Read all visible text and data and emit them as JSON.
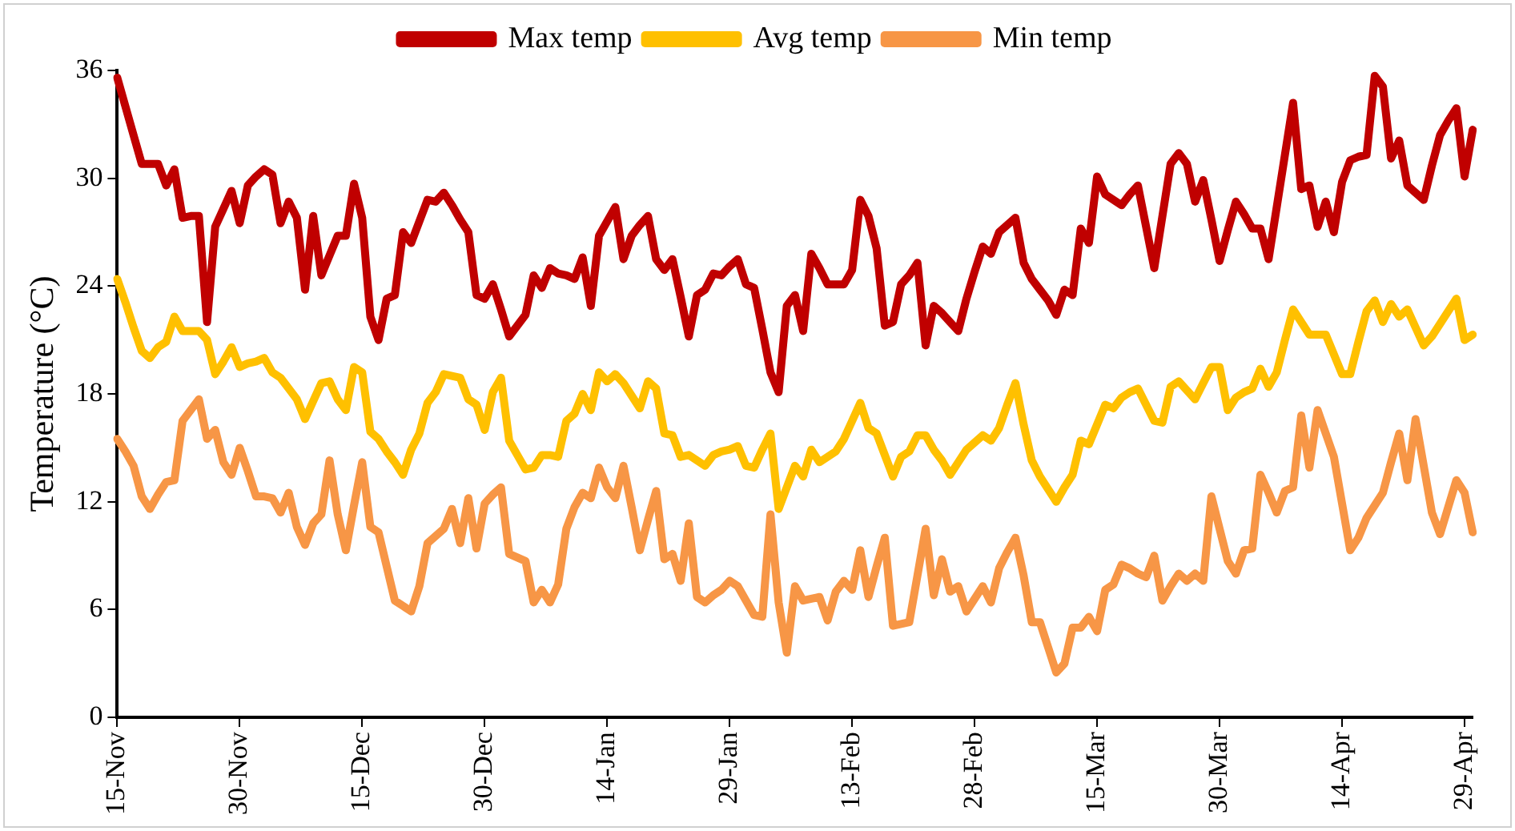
{
  "chart_data": {
    "type": "line",
    "ylabel": "Temperature (°C)",
    "ylim": [
      0,
      36
    ],
    "yticks": [
      0,
      6,
      12,
      18,
      24,
      30,
      36
    ],
    "categories": [
      "15-Nov",
      null,
      null,
      null,
      null,
      null,
      null,
      null,
      null,
      null,
      null,
      null,
      null,
      null,
      null,
      "30-Nov",
      null,
      null,
      null,
      null,
      null,
      null,
      null,
      null,
      null,
      null,
      null,
      null,
      null,
      null,
      "15-Dec",
      null,
      null,
      null,
      null,
      null,
      null,
      null,
      null,
      null,
      null,
      null,
      null,
      null,
      null,
      "30-Dec",
      null,
      null,
      null,
      null,
      null,
      null,
      null,
      null,
      null,
      null,
      null,
      null,
      null,
      null,
      "14-Jan",
      null,
      null,
      null,
      null,
      null,
      null,
      null,
      null,
      null,
      null,
      null,
      null,
      null,
      null,
      "29-Jan",
      null,
      null,
      null,
      null,
      null,
      null,
      null,
      null,
      null,
      null,
      null,
      null,
      null,
      null,
      "13-Feb",
      null,
      null,
      null,
      null,
      null,
      null,
      null,
      null,
      null,
      null,
      null,
      null,
      null,
      null,
      "28-Feb",
      null,
      null,
      null,
      null,
      null,
      null,
      null,
      null,
      null,
      null,
      null,
      null,
      null,
      null,
      "15-Mar",
      null,
      null,
      null,
      null,
      null,
      null,
      null,
      null,
      null,
      null,
      null,
      null,
      null,
      null,
      "30-Mar",
      null,
      null,
      null,
      null,
      null,
      null,
      null,
      null,
      null,
      null,
      null,
      null,
      null,
      null,
      "14-Apr",
      null,
      null,
      null,
      null,
      null,
      null,
      null,
      null,
      null,
      null,
      null,
      null,
      null,
      null,
      "29-Apr",
      null
    ],
    "grid": false,
    "legend": "top",
    "marker": "none",
    "line_style": "solid",
    "series": [
      {
        "name": "Max temp",
        "color": "#c00000",
        "values": [
          35.6,
          34.0,
          32.4,
          30.8,
          30.8,
          30.8,
          29.6,
          30.5,
          27.8,
          27.9,
          27.9,
          22.0,
          27.3,
          28.3,
          29.3,
          27.5,
          29.6,
          30.1,
          30.5,
          30.2,
          27.5,
          28.7,
          27.8,
          23.8,
          27.9,
          24.6,
          25.7,
          26.8,
          26.8,
          29.7,
          27.8,
          22.3,
          21.0,
          23.3,
          23.5,
          27.0,
          26.4,
          27.6,
          28.8,
          28.7,
          29.2,
          28.5,
          27.7,
          27.0,
          23.5,
          23.3,
          24.1,
          22.7,
          21.2,
          21.8,
          22.4,
          24.6,
          23.9,
          25.0,
          24.7,
          24.6,
          24.4,
          25.6,
          22.9,
          26.8,
          27.6,
          28.4,
          25.5,
          26.8,
          27.4,
          27.9,
          25.5,
          24.9,
          25.5,
          23.4,
          21.2,
          23.5,
          23.8,
          24.7,
          24.6,
          25.1,
          25.5,
          24.1,
          23.9,
          21.6,
          19.2,
          18.1,
          22.9,
          23.5,
          21.5,
          25.8,
          25.0,
          24.1,
          24.1,
          24.1,
          24.9,
          28.8,
          27.9,
          26.1,
          21.8,
          22.0,
          24.1,
          24.6,
          25.3,
          20.7,
          22.9,
          22.5,
          22.0,
          21.5,
          23.3,
          24.8,
          26.2,
          25.8,
          27.0,
          27.4,
          27.8,
          25.3,
          24.4,
          23.8,
          23.2,
          22.4,
          23.8,
          23.5,
          27.2,
          26.4,
          30.1,
          29.1,
          28.8,
          28.5,
          29.1,
          29.6,
          27.3,
          25.0,
          27.9,
          30.8,
          31.4,
          30.8,
          28.7,
          29.9,
          27.7,
          25.4,
          27.1,
          28.7,
          28.0,
          27.2,
          27.2,
          25.5,
          28.4,
          31.3,
          34.2,
          29.4,
          29.6,
          27.3,
          28.7,
          27.0,
          29.8,
          31.0,
          31.2,
          31.3,
          35.7,
          35.1,
          31.1,
          32.1,
          29.6,
          29.2,
          28.8,
          30.7,
          32.4,
          33.2,
          33.9,
          30.1,
          32.7
        ]
      },
      {
        "name": "Avg temp",
        "color": "#ffc000",
        "values": [
          24.4,
          23.1,
          21.7,
          20.4,
          20.0,
          20.6,
          20.9,
          22.3,
          21.5,
          21.5,
          21.5,
          21.0,
          19.1,
          19.8,
          20.6,
          19.5,
          19.7,
          19.8,
          20.0,
          19.2,
          18.9,
          18.3,
          17.7,
          16.6,
          17.6,
          18.6,
          18.7,
          17.7,
          17.1,
          19.5,
          19.2,
          15.9,
          15.5,
          14.8,
          14.2,
          13.5,
          14.9,
          15.8,
          17.5,
          18.1,
          19.1,
          19.0,
          18.9,
          17.7,
          17.4,
          16.0,
          18.1,
          18.9,
          15.4,
          14.6,
          13.8,
          13.9,
          14.6,
          14.6,
          14.5,
          16.5,
          16.9,
          18.0,
          17.1,
          19.2,
          18.7,
          19.1,
          18.6,
          17.9,
          17.2,
          18.7,
          18.3,
          15.8,
          15.7,
          14.5,
          14.6,
          14.3,
          14.0,
          14.6,
          14.8,
          14.9,
          15.1,
          14.0,
          13.9,
          14.9,
          15.8,
          11.6,
          12.8,
          14.0,
          13.4,
          14.9,
          14.2,
          14.5,
          14.8,
          15.5,
          16.5,
          17.5,
          16.1,
          15.8,
          14.6,
          13.4,
          14.5,
          14.8,
          15.7,
          15.7,
          14.9,
          14.3,
          13.5,
          14.2,
          14.9,
          15.3,
          15.7,
          15.4,
          16.1,
          17.4,
          18.6,
          16.3,
          14.3,
          13.4,
          12.7,
          12.0,
          12.8,
          13.5,
          15.4,
          15.2,
          16.3,
          17.4,
          17.2,
          17.8,
          18.1,
          18.3,
          17.4,
          16.5,
          16.4,
          18.4,
          18.7,
          18.2,
          17.7,
          18.6,
          19.5,
          19.5,
          17.1,
          17.8,
          18.1,
          18.3,
          19.4,
          18.4,
          19.2,
          21.0,
          22.7,
          22.0,
          21.3,
          21.3,
          21.3,
          20.2,
          19.1,
          19.1,
          20.9,
          22.6,
          23.2,
          22.0,
          23.0,
          22.3,
          22.7,
          21.7,
          20.7,
          21.2,
          21.9,
          22.6,
          23.3,
          21.0,
          21.3
        ]
      },
      {
        "name": "Min temp",
        "color": "#f79646",
        "values": [
          15.5,
          14.8,
          14.0,
          12.3,
          11.6,
          12.4,
          13.1,
          13.2,
          16.5,
          17.1,
          17.7,
          15.5,
          16.0,
          14.2,
          13.5,
          15.0,
          13.7,
          12.3,
          12.3,
          12.2,
          11.4,
          12.5,
          10.6,
          9.6,
          10.8,
          11.3,
          14.3,
          11.3,
          9.3,
          11.8,
          14.2,
          10.6,
          10.3,
          8.4,
          6.5,
          6.2,
          5.9,
          7.3,
          9.7,
          10.1,
          10.5,
          11.6,
          9.7,
          12.2,
          9.4,
          11.9,
          12.4,
          12.8,
          9.1,
          8.9,
          8.7,
          6.4,
          7.1,
          6.4,
          7.4,
          10.5,
          11.7,
          12.5,
          12.2,
          13.9,
          12.8,
          12.2,
          14.0,
          11.7,
          9.3,
          11.0,
          12.6,
          8.8,
          9.1,
          7.6,
          10.8,
          6.7,
          6.4,
          6.8,
          7.1,
          7.6,
          7.3,
          6.5,
          5.7,
          5.6,
          11.3,
          6.4,
          3.6,
          7.3,
          6.5,
          6.6,
          6.7,
          5.4,
          7.0,
          7.6,
          7.1,
          9.3,
          6.7,
          8.4,
          10.0,
          5.1,
          5.2,
          5.3,
          7.9,
          10.5,
          6.8,
          8.8,
          7.0,
          7.3,
          5.9,
          6.6,
          7.3,
          6.4,
          8.3,
          9.2,
          10.0,
          7.9,
          5.3,
          5.3,
          3.9,
          2.5,
          3.0,
          5.0,
          5.0,
          5.6,
          4.8,
          7.1,
          7.4,
          8.5,
          8.3,
          8.0,
          7.8,
          9.0,
          6.5,
          7.3,
          8.0,
          7.6,
          8.0,
          7.6,
          12.3,
          10.5,
          8.7,
          8.0,
          9.3,
          9.4,
          13.5,
          12.5,
          11.4,
          12.6,
          12.8,
          16.8,
          13.9,
          17.1,
          15.8,
          14.5,
          11.9,
          9.3,
          10.0,
          11.1,
          11.8,
          12.5,
          14.2,
          15.8,
          13.2,
          16.6,
          14.0,
          11.4,
          10.2,
          11.7,
          13.2,
          12.5,
          10.3
        ]
      }
    ]
  }
}
